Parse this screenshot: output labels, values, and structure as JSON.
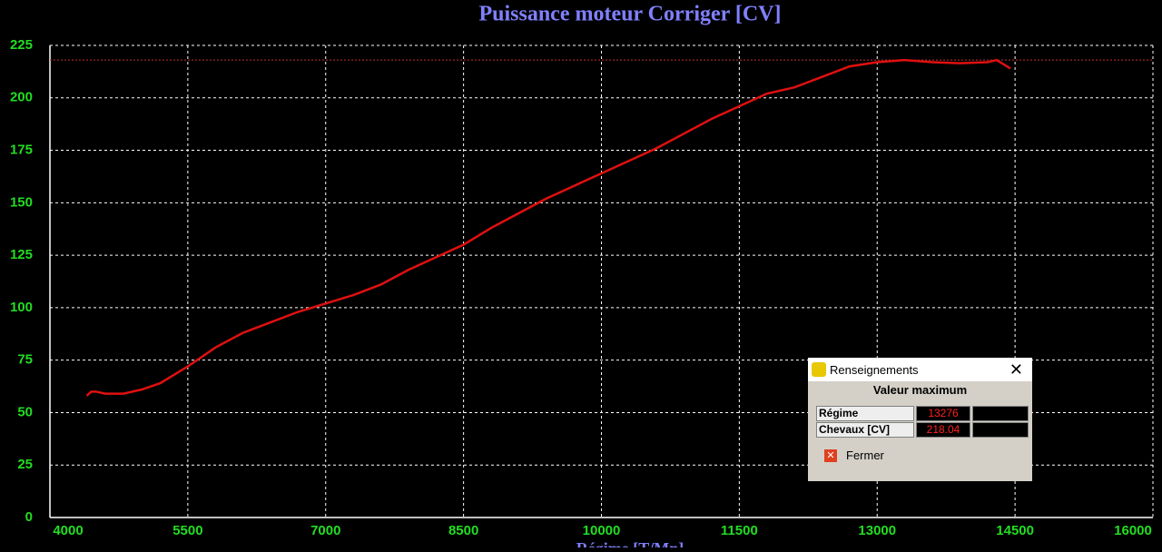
{
  "chart_data": {
    "type": "line",
    "title": "Puissance moteur Corriger [CV]",
    "x_label": "Régime [T/Mn]",
    "x": [
      4400,
      4450,
      4500,
      4600,
      4800,
      5000,
      5200,
      5500,
      5800,
      6100,
      6400,
      6700,
      7000,
      7300,
      7600,
      7900,
      8200,
      8500,
      8800,
      9100,
      9400,
      9700,
      10000,
      10300,
      10600,
      10900,
      11200,
      11500,
      11800,
      12100,
      12400,
      12700,
      13000,
      13300,
      13600,
      13900,
      14200,
      14300,
      14450
    ],
    "series": [
      {
        "color": "#e01010",
        "values": [
          58,
          60,
          60,
          59,
          59,
          61,
          64,
          72,
          81,
          88,
          93,
          98,
          102,
          106,
          111,
          118,
          124,
          130,
          138,
          145,
          152,
          158,
          164,
          170,
          176,
          183,
          190,
          196,
          202,
          205,
          210,
          215,
          217,
          218,
          217,
          216.5,
          217,
          218,
          214
        ]
      }
    ],
    "xlim": [
      4000,
      16000
    ],
    "xticks": [
      4000,
      5500,
      7000,
      8500,
      10000,
      11500,
      13000,
      14500,
      16000
    ],
    "ylim": [
      0,
      225
    ],
    "yticks": [
      0,
      25,
      50,
      75,
      100,
      125,
      150,
      175,
      200,
      225
    ],
    "grid": true
  },
  "dialog": {
    "title": "Renseignements",
    "heading": "Valeur maximum",
    "rows": [
      {
        "label": "Régime",
        "value": 13276
      },
      {
        "label": "Chevaux [CV]",
        "value": 218.04
      }
    ],
    "button": "Fermer"
  }
}
